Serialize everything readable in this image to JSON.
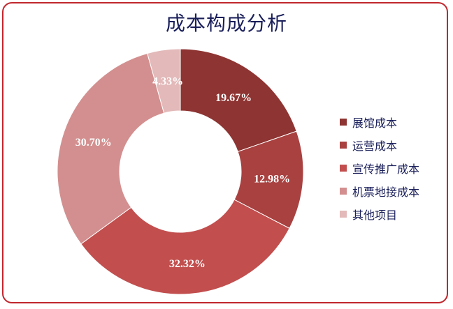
{
  "title": "成本构成分析",
  "chart_data": {
    "type": "pie",
    "donut": true,
    "title": "成本构成分析",
    "legend_position": "right",
    "categories": [
      "展馆成本",
      "运营成本",
      "宣传推广成本",
      "机票地接成本",
      "其他项目"
    ],
    "values": [
      19.67,
      12.98,
      32.32,
      30.7,
      4.33
    ],
    "labels": [
      "19.67%",
      "12.98%",
      "32.32%",
      "30.70%",
      "4.33%"
    ],
    "colors": [
      "#8e3432",
      "#a84140",
      "#c24e4e",
      "#d38f8f",
      "#e3b9b9"
    ]
  }
}
